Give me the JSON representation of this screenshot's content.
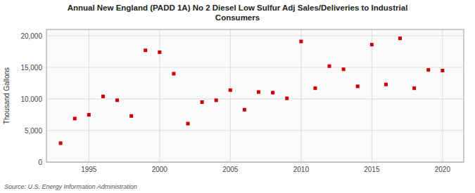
{
  "chart_data": {
    "type": "scatter",
    "title": "Annual New England (PADD 1A) No 2 Diesel Low Sulfur Adj Sales/Deliveries to Industrial\nConsumers",
    "y_label": "Thousand Gallons",
    "source": "Source: U.S. Energy Information Administration",
    "color": "#cc0000",
    "marker": "square",
    "grid": true,
    "x": [
      1993,
      1994,
      1995,
      1996,
      1997,
      1998,
      1999,
      2000,
      2001,
      2002,
      2003,
      2004,
      2005,
      2006,
      2007,
      2008,
      2009,
      2010,
      2011,
      2012,
      2013,
      2014,
      2015,
      2016,
      2017,
      2018,
      2019,
      2020
    ],
    "values": [
      3000,
      6900,
      7500,
      10400,
      9800,
      7300,
      17700,
      17400,
      14000,
      6100,
      9500,
      9800,
      11400,
      8300,
      11100,
      11000,
      10100,
      19100,
      11700,
      15200,
      14700,
      12000,
      18600,
      12300,
      19600,
      11700,
      14600,
      14500
    ],
    "xlim": [
      1992,
      2021.5
    ],
    "ylim": [
      0,
      21000
    ],
    "xticks": [
      1995,
      2000,
      2005,
      2010,
      2015,
      2020
    ],
    "yticks": [
      0,
      {
        "value": 5000,
        "label": "5,000"
      },
      {
        "value": 10000,
        "label": "10,000"
      },
      {
        "value": 15000,
        "label": "15,000"
      },
      {
        "value": 20000,
        "label": "20,000"
      }
    ]
  }
}
